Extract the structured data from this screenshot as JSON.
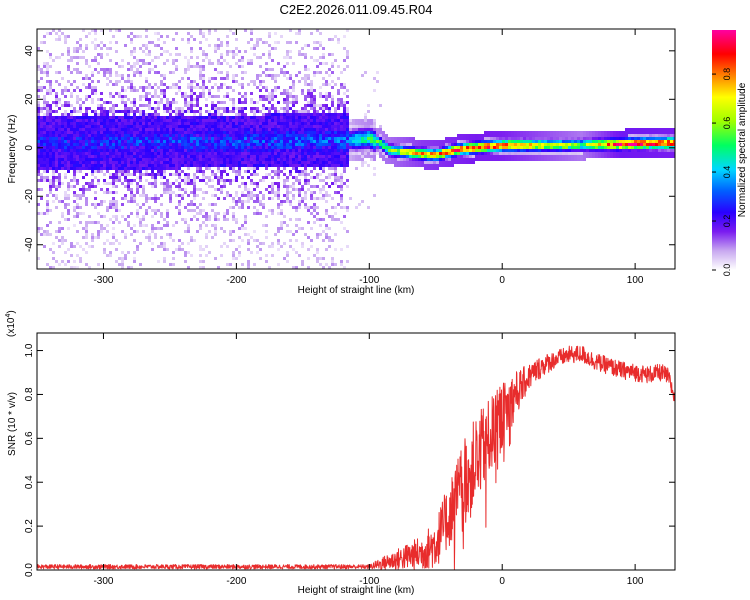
{
  "title": "C2E2.2026.011.09.45.R04",
  "chart_data": [
    {
      "type": "heatmap",
      "name": "spectrogram",
      "xlabel": "Height of straight line (km)",
      "ylabel": "Frequency (Hz)",
      "xlim": [
        -350,
        130
      ],
      "ylim": [
        -50,
        49
      ],
      "xticks": [
        -300,
        -200,
        -100,
        0,
        100
      ],
      "yticks": [
        -40,
        -20,
        0,
        20,
        40
      ],
      "colorbar": {
        "label": "Normalized spectral amplitude",
        "range": [
          0.0,
          0.98
        ],
        "ticks": [
          0.0,
          0.2,
          0.4,
          0.6,
          0.8
        ],
        "colors": [
          "#ffffff",
          "#c8a8f0",
          "#7a1cf0",
          "#2a00ff",
          "#0060ff",
          "#00d8ff",
          "#00ff60",
          "#a0ff00",
          "#ffff00",
          "#ff9000",
          "#ff0000",
          "#ff00a0"
        ]
      },
      "band_center_hz": [
        {
          "x": -350,
          "f": 2
        },
        {
          "x": -115,
          "f": 3
        },
        {
          "x": -100,
          "f": 4
        },
        {
          "x": -92,
          "f": 2
        },
        {
          "x": -85,
          "f": -1
        },
        {
          "x": -70,
          "f": -2
        },
        {
          "x": -50,
          "f": -3
        },
        {
          "x": -35,
          "f": -1
        },
        {
          "x": -20,
          "f": 0
        },
        {
          "x": 0,
          "f": 1
        },
        {
          "x": 50,
          "f": 1
        },
        {
          "x": 130,
          "f": 2
        }
      ],
      "peak_amplitude": [
        {
          "x": -350,
          "a": 0.35
        },
        {
          "x": -116,
          "a": 0.4
        },
        {
          "x": -110,
          "a": 0.5
        },
        {
          "x": -90,
          "a": 0.6
        },
        {
          "x": -60,
          "a": 0.8
        },
        {
          "x": -20,
          "a": 0.9
        },
        {
          "x": 0,
          "a": 0.88
        },
        {
          "x": 60,
          "a": 0.6
        },
        {
          "x": 90,
          "a": 0.95
        },
        {
          "x": 130,
          "a": 0.9
        }
      ]
    },
    {
      "type": "line",
      "name": "snr",
      "xlabel": "Height of straight line (km)",
      "ylabel": "SNR (10 * v/v)",
      "yscale_label": "(x10",
      "yscale_exponent": "4",
      "xlim": [
        -350,
        130
      ],
      "ylim": [
        0.0,
        1.08
      ],
      "xticks": [
        -300,
        -200,
        -100,
        0,
        100
      ],
      "yticks": [
        0.0,
        0.2,
        0.4,
        0.6,
        0.8,
        1.0
      ],
      "color": "#e82c2c",
      "envelope": {
        "x": [
          -350,
          -100,
          -90,
          -60,
          -50,
          -40,
          -30,
          -20,
          -10,
          0,
          10,
          20,
          30,
          40,
          50,
          60,
          70,
          80,
          90,
          100,
          110,
          120,
          125,
          130
        ],
        "y": [
          0.015,
          0.015,
          0.03,
          0.08,
          0.12,
          0.25,
          0.4,
          0.5,
          0.6,
          0.7,
          0.8,
          0.88,
          0.93,
          0.96,
          0.98,
          0.985,
          0.95,
          0.93,
          0.91,
          0.9,
          0.89,
          0.9,
          0.88,
          0.78
        ]
      },
      "noise_amplitude": {
        "x": [
          -350,
          -100,
          -90,
          -60,
          -40,
          -20,
          0,
          20,
          40,
          60,
          130
        ],
        "y": [
          0.01,
          0.01,
          0.03,
          0.08,
          0.15,
          0.2,
          0.15,
          0.06,
          0.04,
          0.04,
          0.04
        ]
      }
    }
  ]
}
